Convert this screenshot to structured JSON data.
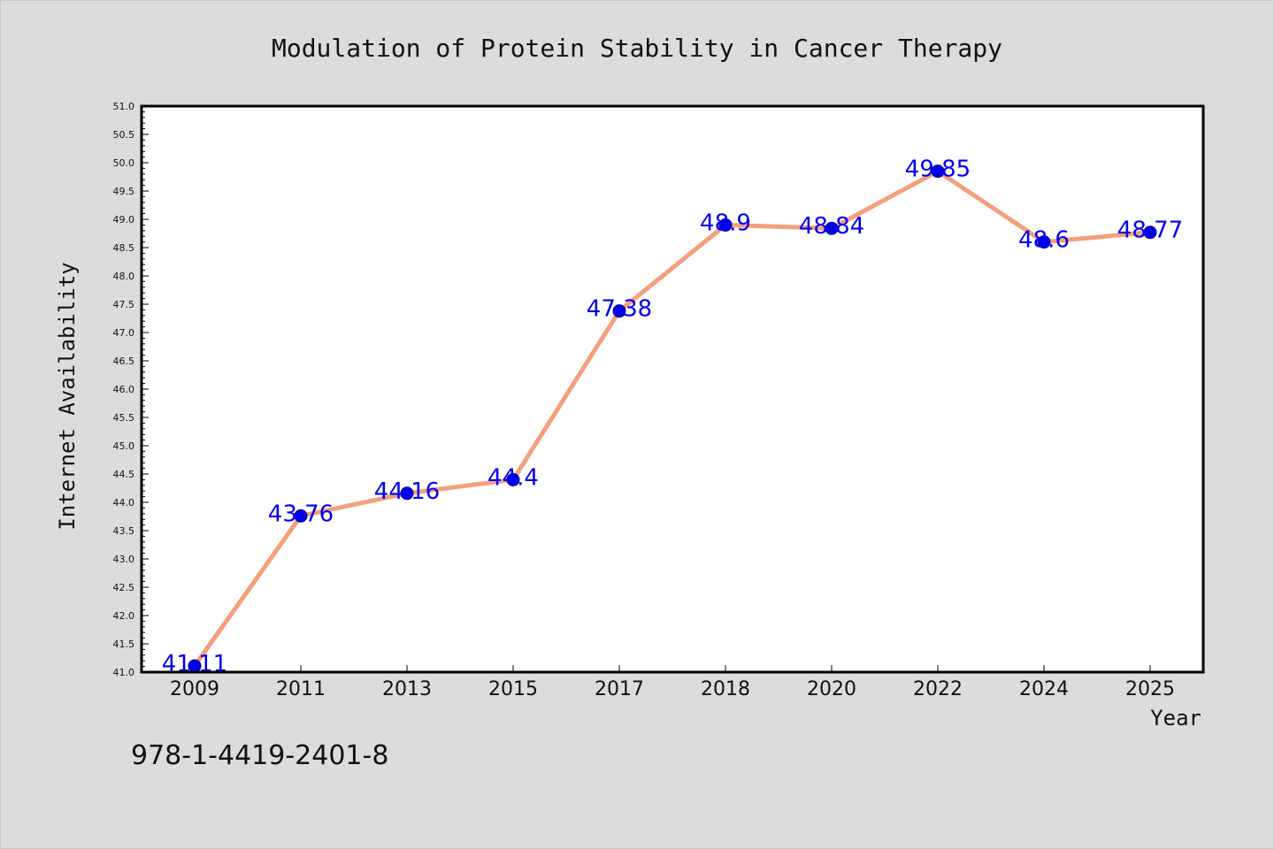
{
  "chart_data": {
    "type": "line",
    "title": "Modulation of Protein Stability in Cancer Therapy",
    "xlabel": "Year",
    "ylabel": "Internet Availability",
    "categories": [
      "2009",
      "2011",
      "2013",
      "2015",
      "2017",
      "2018",
      "2020",
      "2022",
      "2024",
      "2025"
    ],
    "series": [
      {
        "values": [
          41.11,
          43.76,
          44.16,
          44.4,
          47.38,
          48.9,
          48.84,
          49.85,
          48.6,
          48.77
        ],
        "data_labels": [
          "41.11",
          "43.76",
          "44.16",
          "44.4",
          "47.38",
          "48.9",
          "48.84",
          "49.85",
          "48.6",
          "48.77"
        ],
        "line_color": "#f4a07c",
        "marker_color": "#0000ee"
      }
    ],
    "ylim": [
      41.0,
      51.0
    ],
    "y_ticks": [
      "41.0",
      "41.5",
      "42.0",
      "42.5",
      "43.0",
      "43.5",
      "44.0",
      "44.5",
      "45.0",
      "45.5",
      "46.0",
      "46.5",
      "47.0",
      "47.5",
      "48.0",
      "48.5",
      "49.0",
      "49.5",
      "50.0",
      "50.5",
      "51.0"
    ],
    "grid": false,
    "legend": "none",
    "data_label_color": "#0000ee"
  },
  "footer_code": "978-1-4419-2401-8"
}
